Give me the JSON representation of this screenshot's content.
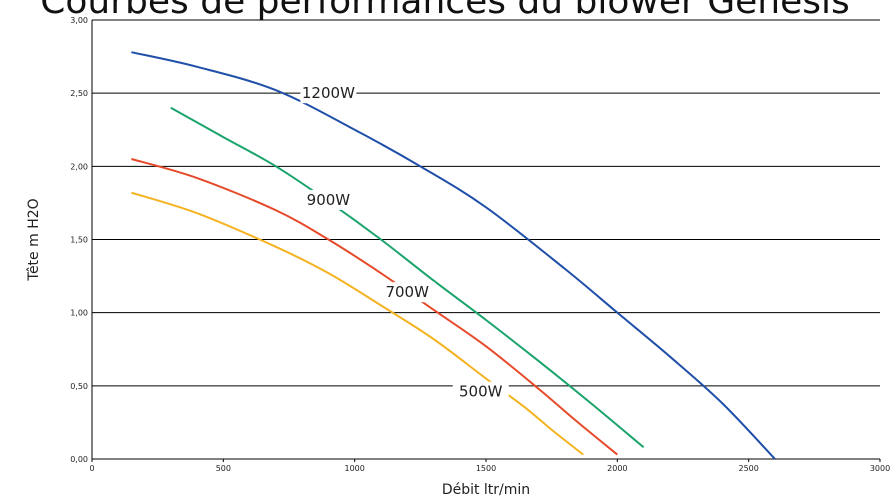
{
  "title": "Courbes de performances du blower Genesis",
  "chart_data": {
    "type": "line",
    "xlabel": "Débit ltr/min",
    "ylabel": "Tête m H2O",
    "xlim": [
      0,
      3000
    ],
    "ylim": [
      0,
      3
    ],
    "x_ticks": [
      "0",
      "500",
      "1000",
      "1500",
      "2000",
      "2500",
      "3000"
    ],
    "y_ticks": [
      "0,00",
      "0,50",
      "1,00",
      "1,50",
      "2,00",
      "2,50",
      "3,00"
    ],
    "grid": "horizontal",
    "series": [
      {
        "name": "1200W",
        "color": "#1f4fa8",
        "x": [
          150,
          400,
          700,
          1000,
          1250,
          1500,
          1800,
          2000,
          2200,
          2400,
          2600
        ],
        "y": [
          2.78,
          2.68,
          2.52,
          2.25,
          2.0,
          1.72,
          1.3,
          1.0,
          0.7,
          0.38,
          0.0
        ]
      },
      {
        "name": "900W",
        "color": "#1aa36b",
        "x": [
          300,
          500,
          700,
          900,
          1100,
          1300,
          1500,
          1700,
          1900,
          2100
        ],
        "y": [
          2.4,
          2.2,
          2.0,
          1.76,
          1.5,
          1.22,
          0.95,
          0.67,
          0.38,
          0.08
        ]
      },
      {
        "name": "700W",
        "color": "#e64a2a",
        "x": [
          150,
          400,
          700,
          900,
          1100,
          1300,
          1500,
          1700,
          1850,
          2000
        ],
        "y": [
          2.05,
          1.92,
          1.7,
          1.5,
          1.27,
          1.02,
          0.77,
          0.48,
          0.25,
          0.03
        ]
      },
      {
        "name": "500W",
        "color": "#f5b321",
        "x": [
          150,
          400,
          700,
          900,
          1100,
          1300,
          1500,
          1650,
          1750,
          1870
        ],
        "y": [
          1.82,
          1.68,
          1.45,
          1.27,
          1.05,
          0.82,
          0.55,
          0.35,
          0.2,
          0.03
        ]
      }
    ]
  }
}
